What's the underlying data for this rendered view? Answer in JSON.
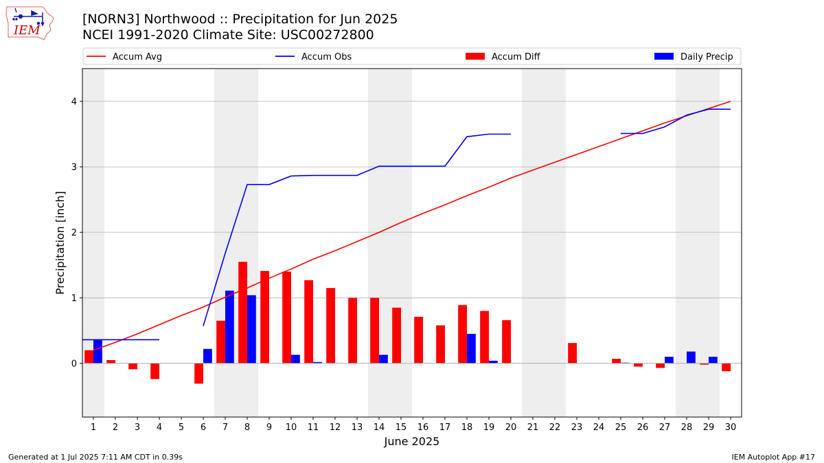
{
  "header": {
    "title_line1": "[NORN3] Northwood :: Precipitation for Jun 2025",
    "title_line2": "NCEI 1991-2020 Climate Site: USC00272800",
    "logo_text": "IEM"
  },
  "footer": {
    "generated": "Generated at 1 Jul 2025 7:11 AM CDT in 0.39s",
    "app": "IEM Autoplot App #17"
  },
  "colors": {
    "accum_avg": "#ff0000",
    "accum_obs": "#0000ff",
    "accum_diff": "#ff0000",
    "daily_precip": "#0000ff",
    "weekend_band": "#eeeeee",
    "grid": "#b0b0b0"
  },
  "chart_data": {
    "type": "bar",
    "xlabel": "June 2025",
    "ylabel": "Precipitation [inch]",
    "xlim": [
      0.5,
      30.5
    ],
    "ylim": [
      -0.82,
      4.5
    ],
    "yticks": [
      0,
      1,
      2,
      3,
      4
    ],
    "categories": [
      "1",
      "2",
      "3",
      "4",
      "5",
      "6",
      "7",
      "8",
      "9",
      "10",
      "11",
      "12",
      "13",
      "14",
      "15",
      "16",
      "17",
      "18",
      "19",
      "20",
      "21",
      "22",
      "23",
      "24",
      "25",
      "26",
      "27",
      "28",
      "29",
      "30"
    ],
    "grid": "horizontal",
    "legend_placement": "top",
    "weekend_bands": [
      [
        0.5,
        1.5
      ],
      [
        6.5,
        8.5
      ],
      [
        13.5,
        15.5
      ],
      [
        20.5,
        22.5
      ],
      [
        27.5,
        29.5
      ]
    ],
    "series": [
      {
        "name": "Accum Avg",
        "kind": "line",
        "values": [
          0.2,
          0.32,
          0.45,
          0.59,
          0.73,
          0.86,
          1.01,
          1.15,
          1.3,
          1.44,
          1.59,
          1.72,
          1.86,
          2.0,
          2.15,
          2.29,
          2.42,
          2.56,
          2.69,
          2.83,
          2.95,
          3.07,
          3.19,
          3.31,
          3.43,
          3.55,
          3.67,
          3.78,
          3.89,
          4.0
        ]
      },
      {
        "name": "Accum Obs",
        "kind": "line",
        "values": [
          0.36,
          0.36,
          0.36,
          0.36,
          null,
          0.57,
          1.68,
          2.73,
          2.73,
          2.86,
          2.87,
          2.87,
          2.87,
          3.01,
          3.01,
          3.01,
          3.01,
          3.46,
          3.5,
          3.5,
          null,
          null,
          null,
          null,
          3.51,
          3.51,
          3.61,
          3.79,
          3.88,
          3.88
        ]
      },
      {
        "name": "Accum Diff",
        "kind": "bar",
        "values": [
          0.2,
          0.05,
          -0.09,
          -0.24,
          0,
          -0.31,
          0.65,
          1.55,
          1.41,
          1.4,
          1.27,
          1.15,
          1.0,
          1.0,
          0.85,
          0.71,
          0.58,
          0.89,
          0.8,
          0.66,
          0,
          0,
          0.31,
          0,
          0.07,
          -0.05,
          -0.07,
          0,
          -0.02,
          -0.12
        ]
      },
      {
        "name": "Daily Precip",
        "kind": "bar",
        "values": [
          0.36,
          0,
          0,
          0,
          0,
          0.22,
          1.11,
          1.04,
          0,
          0.13,
          0.02,
          0,
          0,
          0.13,
          0,
          0,
          0,
          0.45,
          0.04,
          0,
          0,
          0,
          0,
          0,
          0.01,
          0,
          0.1,
          0.18,
          0.1,
          0
        ]
      }
    ]
  }
}
